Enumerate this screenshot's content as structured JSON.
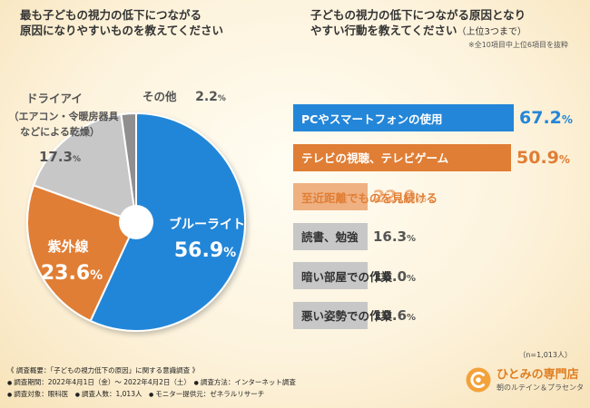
{
  "left_question": {
    "line1": "最も子どもの視力の低下につながる",
    "line2": "原因になりやすいものを教えてください"
  },
  "right_question": {
    "line1": "子どもの視力の低下につながる原因となり",
    "line2_main": "やすい行動を教えてください",
    "line2_sub": "（上位3つまで）",
    "note": "※全10項目中上位6項目を抜粋"
  },
  "colors": {
    "blue": "#2486d8",
    "orange": "#e07e35",
    "light_orange": "#efb182",
    "gray": "#c7c7c7",
    "dark_gray": "#8f8f8f",
    "gray_text": "#555555"
  },
  "chart_data": [
    {
      "type": "pie",
      "title": "最も子どもの視力の低下につながる原因になりやすいものを教えてください",
      "slices": [
        {
          "label": "ブルーライト",
          "value": 56.9,
          "display": "56.9",
          "color": "#2486d8"
        },
        {
          "label": "紫外線",
          "value": 23.6,
          "display": "23.6",
          "color": "#e07e35"
        },
        {
          "label": "ドライアイ（エアコン・令暖房器具などによる乾燥）",
          "label_lines": [
            "ドライアイ",
            "（エアコン・令暖房器具",
            "などによる乾燥）"
          ],
          "value": 17.3,
          "display": "17.3",
          "color": "#c7c7c7"
        },
        {
          "label": "その他",
          "value": 2.2,
          "display": "2.2",
          "color": "#8f8f8f"
        }
      ],
      "unit": "%"
    },
    {
      "type": "bar",
      "orientation": "horizontal",
      "title": "子どもの視力の低下につながる原因となりやすい行動を教えてください（上位3つまで）",
      "categories": [
        "PCやスマートフォンの使用",
        "テレビの視聴、テレビゲーム",
        "至近距離でものを見続ける",
        "読書、勉強",
        "暗い部屋での作業",
        "悪い姿勢での作業"
      ],
      "values": [
        67.2,
        50.9,
        22.0,
        16.3,
        16.0,
        10.6
      ],
      "display": [
        "67.2",
        "50.9",
        "22.0",
        "16.3",
        "16.0",
        "10.6"
      ],
      "unit": "%"
    }
  ],
  "sample_note": "（n=1,013人）",
  "footer": {
    "title": "《 調査概要：「子どもの視力低下の原因」に関する意識調査 》",
    "period": "調査期間：2022年4月1日（金）～ 2022年4月2日（土）",
    "method": "調査方法：インターネット調査",
    "target": "調査対象：眼科医",
    "count": "調査人数：1,013人",
    "provider": "モニター提供元：ゼネラルリサーチ"
  },
  "logo": {
    "name": "ひとみの専門店",
    "subtitle": "朝のルテイン＆プラセンタ",
    "icon": "eye-logo-icon"
  }
}
